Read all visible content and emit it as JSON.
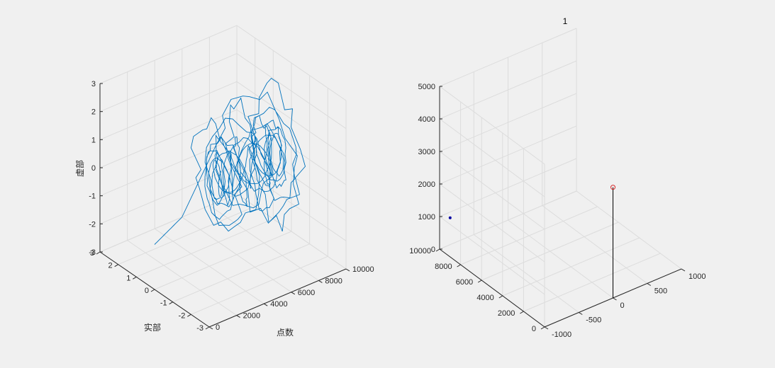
{
  "chart_data": [
    {
      "type": "line",
      "projection": "3d",
      "title": "",
      "xlabel": "点数",
      "ylabel": "实部",
      "zlabel": "虚部",
      "xlim": [
        0,
        10000
      ],
      "ylim": [
        -3,
        3
      ],
      "zlim": [
        -3,
        3
      ],
      "x_ticks": [
        "0",
        "2000",
        "4000",
        "6000",
        "8000",
        "10000"
      ],
      "y_ticks": [
        "-3",
        "-2",
        "-1",
        "0",
        "1",
        "2",
        "3"
      ],
      "z_ticks": [
        "-3",
        "-2",
        "-1",
        "0",
        "1",
        "2",
        "3"
      ],
      "grid": true,
      "series": [
        {
          "color": "#0072bd",
          "description_note": "",
          "line": {
            "x_start": 0,
            "x_end": 9000,
            "lead_in_end": 2000,
            "lead_in_y": 0,
            "lead_in_z": -1.4,
            "outer_radius_y": 2.8,
            "outer_radius_z": 3.1,
            "inner_radius_y": 0.35,
            "inner_radius_z": 0.6,
            "turns": 26
          }
        }
      ]
    },
    {
      "type": "scatter",
      "projection": "3d",
      "title": "1",
      "xlabel": "",
      "ylabel": "",
      "zlabel": "",
      "xlim": [
        0,
        10000
      ],
      "ylim": [
        -1000,
        1000
      ],
      "zlim": [
        0,
        5000
      ],
      "x_ticks": [
        "0",
        "2000",
        "4000",
        "6000",
        "8000",
        "10000"
      ],
      "y_ticks": [
        "-1000",
        "-500",
        "0",
        "500",
        "1000"
      ],
      "z_ticks": [
        "0",
        "1000",
        "2000",
        "3000",
        "4000",
        "5000"
      ],
      "grid": true,
      "series": [
        {
          "marker": "o",
          "color": "#d62728",
          "points": [
            {
              "x": 0,
              "y": 0,
              "z": 3400
            }
          ]
        },
        {
          "marker": "stem",
          "color": "#000000",
          "points": [
            {
              "x": 0,
              "y": 0,
              "z": 3400
            }
          ]
        },
        {
          "marker": ".",
          "color": "#0000a0",
          "points": [
            {
              "x": 9000,
              "y": -1000,
              "z": 1200
            }
          ]
        }
      ]
    }
  ]
}
